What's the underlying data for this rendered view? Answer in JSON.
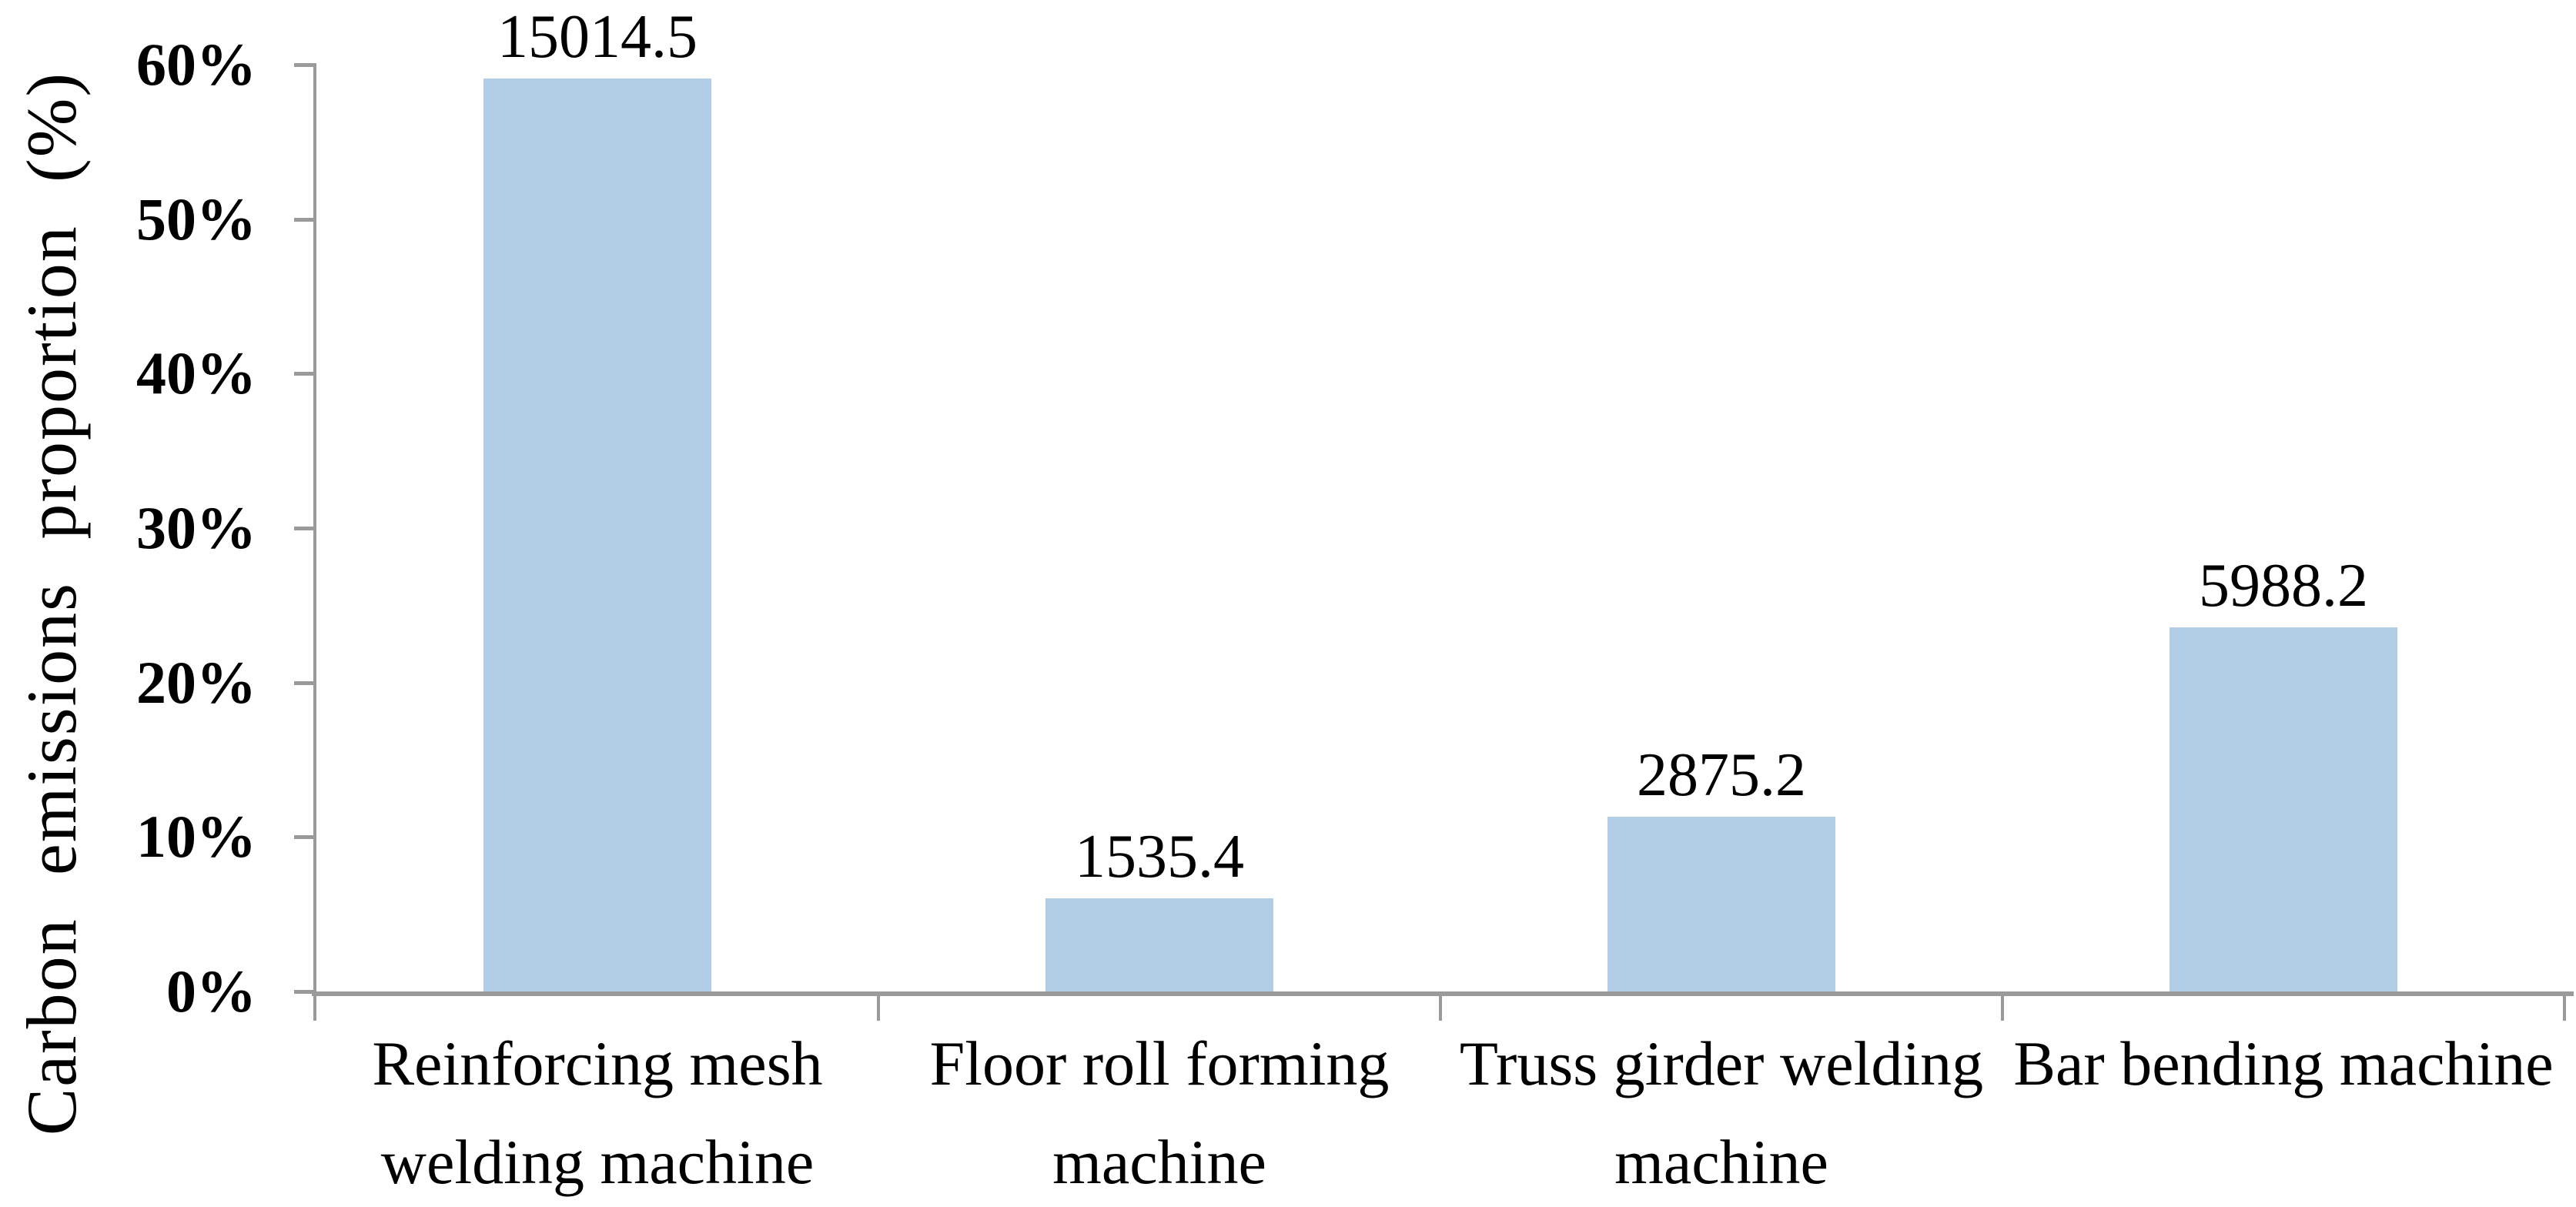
{
  "chart_data": {
    "type": "bar",
    "title": "",
    "ylabel": "Carbon emissions proportion (%)",
    "xlabel": "",
    "categories": [
      "Reinforcing mesh\nwelding machine",
      "Floor roll forming\nmachine",
      "Truss girder welding\nmachine",
      "Bar bending machine"
    ],
    "values": [
      15014.5,
      1535.4,
      2875.2,
      5988.2
    ],
    "value_labels": [
      "15014.5",
      "1535.4",
      "2875.2",
      "5988.2"
    ],
    "percent_of_total": [
      59.1,
      6.0,
      11.3,
      23.6
    ],
    "y_ticks": [
      "60%",
      "50%",
      "40%",
      "30%",
      "20%",
      "10%",
      "0%"
    ],
    "ylim": [
      0,
      60
    ],
    "grid": false,
    "legend": "none",
    "bar_color_hex": "#B2CEE6",
    "axis_color_hex": "#9A9A9A",
    "text_color_hex": "#000000"
  }
}
